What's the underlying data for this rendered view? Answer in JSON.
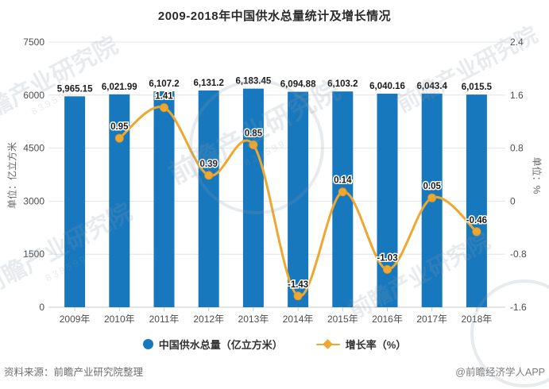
{
  "title": "2009-2018年中国供水总量统计及增长情况",
  "chart_data": {
    "type": "combo",
    "title": "2009-2018年中国供水总量统计及增长情况",
    "categories": [
      "2009年",
      "2010年",
      "2011年",
      "2012年",
      "2013年",
      "2014年",
      "2015年",
      "2016年",
      "2017年",
      "2018年"
    ],
    "series": [
      {
        "name": "中国供水总量（亿立方米）",
        "type": "bar",
        "axis": "left",
        "color": "#1778bd",
        "values": [
          5965.15,
          6021.99,
          6107.2,
          6131.2,
          6183.45,
          6094.88,
          6103.2,
          6040.16,
          6043.4,
          6015.5
        ],
        "labels": [
          "5,965.15",
          "6,021.99",
          "6,107.2",
          "6,131.2",
          "6,183.45",
          "6,094.88",
          "6,103.2",
          "6,040.16",
          "6,043.4",
          "6,015.5"
        ]
      },
      {
        "name": "增长率（%）",
        "type": "line",
        "axis": "right",
        "color": "#eea831",
        "marker_stroke": "#dd9a22",
        "values": [
          null,
          0.95,
          1.41,
          0.39,
          0.85,
          -1.43,
          0.14,
          -1.03,
          0.05,
          -0.46
        ],
        "labels": [
          "",
          "0.95",
          "1.41",
          "0.39",
          "0.85",
          "-1.43",
          "0.14",
          "-1.03",
          "0.05",
          "-0.46"
        ]
      }
    ],
    "left_axis": {
      "title": "单位：亿立方米",
      "min": 0,
      "max": 7500,
      "ticks": [
        0,
        1500,
        3000,
        4500,
        6000,
        7500
      ],
      "tick_labels": [
        "0",
        "1500",
        "3000",
        "4500",
        "6000",
        "7500"
      ]
    },
    "right_axis": {
      "title": "单位：%",
      "min": -1.6,
      "max": 2.4,
      "ticks": [
        -1.6,
        -0.8,
        0,
        0.8,
        1.6,
        2.4
      ],
      "tick_labels": [
        "-1.6",
        "-0.8",
        "0",
        "0.8",
        "1.6",
        "2.4"
      ]
    },
    "grid": true,
    "legend_position": "bottom",
    "colors": {
      "grid_line": "#e4e4e4",
      "axis_line": "#c9c9c9",
      "tick_text": "#4d4d4d",
      "data_label": "#1a1a1a"
    }
  },
  "legend": {
    "items": [
      {
        "label": "中国供水总量（亿立方米）",
        "marker": "circle",
        "color": "#1778bd"
      },
      {
        "label": "增长率（%）",
        "marker": "diamond",
        "color": "#eea831"
      }
    ]
  },
  "footer": {
    "source": "资料来源：前瞻产业研究院整理",
    "credit": "@前瞻经济学人APP"
  },
  "watermark": {
    "text": "前瞻产业研究院",
    "sub": "839599",
    "color": "rgba(142,156,170,0.20)"
  }
}
